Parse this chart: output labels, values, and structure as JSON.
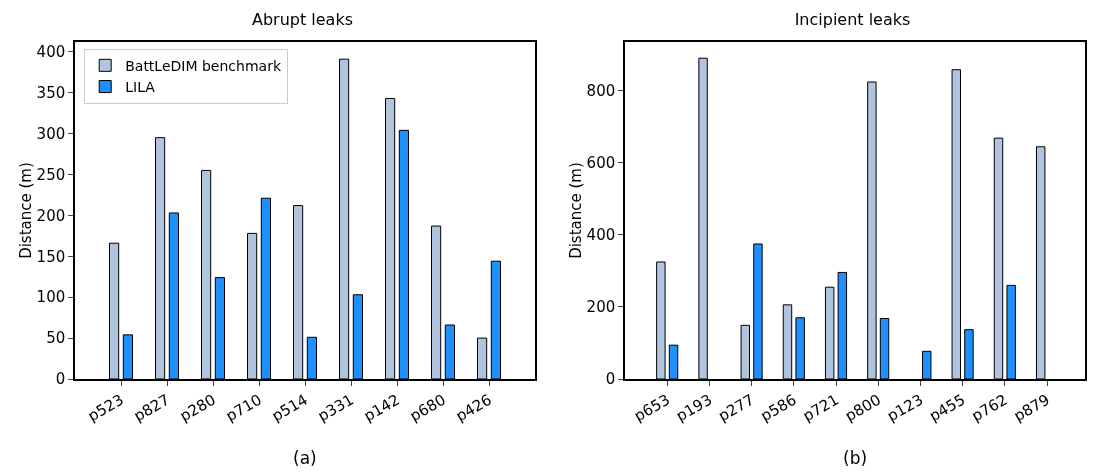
{
  "chart_data": [
    {
      "type": "bar",
      "title": "Abrupt leaks",
      "ylabel": "Distance (m)",
      "annotations": [
        "(a)"
      ],
      "categories": [
        "p523",
        "p827",
        "p280",
        "p710",
        "p514",
        "p331",
        "p142",
        "p680",
        "p426"
      ],
      "series": [
        {
          "name": "BattLeDIM benchmark",
          "color": "#b0c4de",
          "values": [
            166,
            295,
            255,
            178,
            212,
            391,
            343,
            187,
            50
          ]
        },
        {
          "name": "LILA",
          "color": "#1e90ff",
          "values": [
            54,
            203,
            124,
            221,
            51,
            103,
            304,
            66,
            144
          ]
        }
      ],
      "ylim": [
        0,
        412
      ],
      "yticks": [
        0,
        50,
        100,
        150,
        200,
        250,
        300,
        350,
        400
      ],
      "grid": false,
      "legend": "top left"
    },
    {
      "type": "bar",
      "title": "Incipient leaks",
      "ylabel": "Distance (m)",
      "annotations": [
        "(b)"
      ],
      "categories": [
        "p653",
        "p193",
        "p277",
        "p586",
        "p721",
        "p800",
        "p123",
        "p455",
        "p762",
        "p879"
      ],
      "series": [
        {
          "color": "#b0c4de",
          "values": [
            325,
            891,
            149,
            206,
            255,
            825,
            null,
            859,
            669,
            645
          ]
        },
        {
          "color": "#1e90ff",
          "values": [
            94,
            null,
            375,
            170,
            296,
            168,
            77,
            137,
            260,
            null
          ]
        }
      ],
      "ylim": [
        0,
        936
      ],
      "yticks": [
        0,
        200,
        400,
        600,
        800
      ],
      "grid": false,
      "legend": false
    }
  ]
}
